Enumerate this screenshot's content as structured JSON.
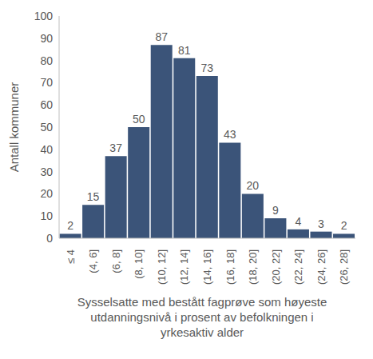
{
  "chart_data": {
    "type": "bar",
    "categories": [
      "≤ 4",
      "(4, 6]",
      "(6, 8]",
      "(8, 10]",
      "(10, 12]",
      "(12, 14]",
      "(14, 16]",
      "(16, 18]",
      "(18, 20]",
      "(20, 22]",
      "(22, 24]",
      "(24, 26]",
      "(26, 28]"
    ],
    "values": [
      2,
      15,
      37,
      50,
      87,
      81,
      73,
      43,
      20,
      9,
      4,
      3,
      2
    ],
    "color": "#3b5479",
    "ylim": [
      0,
      100
    ],
    "yticks": [
      0,
      10,
      20,
      30,
      40,
      50,
      60,
      70,
      80,
      90,
      100
    ],
    "grid": false,
    "data_labels": true,
    "y_label": "Antall kommuner",
    "x_label": "Sysselsatte med bestått fagprøve som høyeste utdanningsnivå i prosent av befolkningen i yrkesaktiv alder"
  }
}
